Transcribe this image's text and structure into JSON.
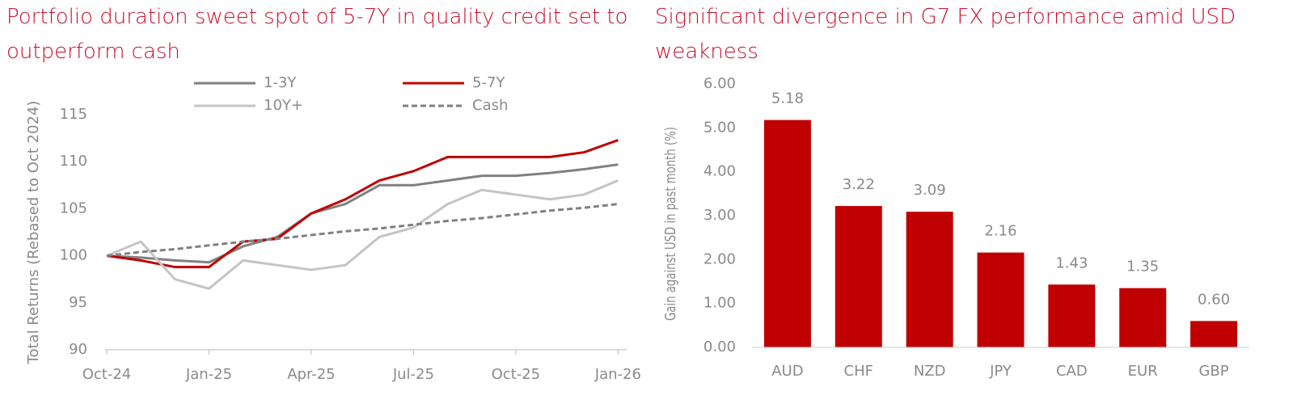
{
  "chart_data": [
    {
      "type": "line",
      "title": "Portfolio duration sweet spot of 5-7Y in quality credit set to outperform cash",
      "y_label": "Total Returns (Rebased to Oct 2024)",
      "x": [
        "Oct-24",
        "Nov-24",
        "Dec-24",
        "Jan-25",
        "Feb-25",
        "Mar-25",
        "Apr-25",
        "May-25",
        "Jun-25",
        "Jul-25",
        "Aug-25",
        "Sep-25",
        "Oct-25",
        "Nov-25",
        "Dec-25",
        "Jan-26"
      ],
      "xticks": [
        "Oct-24",
        "Jan-25",
        "Apr-25",
        "Jul-25",
        "Oct-25",
        "Jan-26"
      ],
      "ylim": [
        90,
        115
      ],
      "yticks": [
        90,
        95,
        100,
        105,
        110,
        115
      ],
      "grid": false,
      "series": [
        {
          "name": "1-3Y",
          "color": "#808080",
          "dash": false,
          "values": [
            100,
            99.8,
            99.5,
            99.3,
            101,
            102,
            104.5,
            105.5,
            107.5,
            107.5,
            108,
            108.5,
            108.5,
            108.8,
            109.2,
            109.7
          ]
        },
        {
          "name": "5-7Y",
          "color": "#c00000",
          "dash": false,
          "values": [
            100,
            99.5,
            98.8,
            98.8,
            101.5,
            101.8,
            104.5,
            106,
            108,
            109,
            110.5,
            110.5,
            110.5,
            110.5,
            111,
            112.3
          ]
        },
        {
          "name": "10Y+",
          "color": "#c4c4c4",
          "dash": false,
          "values": [
            100,
            101.5,
            97.5,
            96.5,
            99.5,
            99,
            98.5,
            99,
            102,
            103,
            105.5,
            107,
            106.5,
            106,
            106.5,
            108
          ]
        },
        {
          "name": "Cash",
          "color": "#808080",
          "dash": true,
          "values": [
            100,
            100.4,
            100.7,
            101.1,
            101.5,
            101.8,
            102.2,
            102.6,
            102.9,
            103.3,
            103.7,
            104.0,
            104.4,
            104.8,
            105.1,
            105.5
          ]
        }
      ]
    },
    {
      "type": "bar",
      "title": "Significant divergence in G7 FX performance amid USD weakness",
      "y_label": "Gain against USD in past month (%)",
      "categories": [
        "AUD",
        "CHF",
        "NZD",
        "JPY",
        "CAD",
        "EUR",
        "GBP"
      ],
      "values": [
        5.18,
        3.22,
        3.09,
        2.16,
        1.43,
        1.35,
        0.6
      ],
      "value_labels": [
        "5.18",
        "3.22",
        "3.09",
        "2.16",
        "1.43",
        "1.35",
        "0.60"
      ],
      "color": "#c00000",
      "ylim": [
        0,
        6
      ],
      "yticks": [
        {
          "value": 0,
          "label": "0.00"
        },
        {
          "value": 1,
          "label": "1.00"
        },
        {
          "value": 2,
          "label": "2.00"
        },
        {
          "value": 3,
          "label": "3.00"
        },
        {
          "value": 4,
          "label": "4.00"
        },
        {
          "value": 5,
          "label": "5.00"
        },
        {
          "value": 6,
          "label": "6.00"
        }
      ],
      "grid": false
    }
  ]
}
